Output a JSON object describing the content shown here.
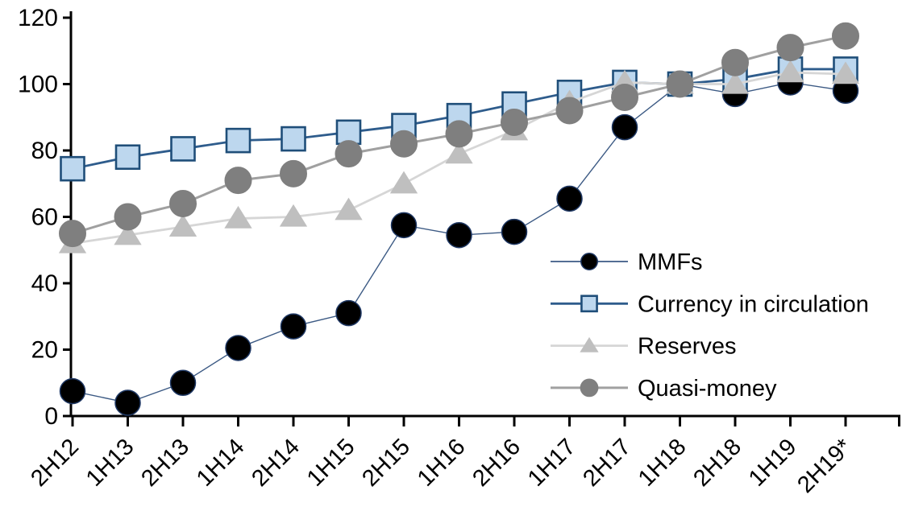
{
  "chart_data": {
    "type": "line",
    "title": "",
    "xlabel": "",
    "ylabel": "",
    "categories": [
      "2H12",
      "1H13",
      "2H13",
      "1H14",
      "2H14",
      "1H15",
      "2H15",
      "1H16",
      "2H16",
      "1H17",
      "2H17",
      "1H18",
      "2H18",
      "1H19",
      "2H19*"
    ],
    "series": [
      {
        "name": "MMFs",
        "marker": "circle",
        "values": [
          7.5,
          4,
          10,
          20.5,
          27,
          31,
          57.5,
          54.5,
          55.5,
          65.5,
          87,
          100,
          97,
          100.5,
          98
        ],
        "line_color": "#3C5A84",
        "line_width": 1.4,
        "marker_fill": "#000000",
        "marker_stroke": "#1F3864",
        "marker_stroke_width": 1.5,
        "marker_size": 31
      },
      {
        "name": "Currency in circulation",
        "marker": "square",
        "values": [
          74.5,
          78,
          80.5,
          83,
          83.5,
          85.5,
          87.5,
          90.5,
          94,
          97.5,
          100.5,
          100,
          101.5,
          104.5,
          104.5
        ],
        "line_color": "#2E5C8C",
        "line_width": 2.8,
        "marker_fill": "#BDD7EE",
        "marker_stroke": "#1F4E79",
        "marker_stroke_width": 2.6,
        "marker_size": 29
      },
      {
        "name": "Reserves",
        "marker": "triangle",
        "values": [
          52,
          54.5,
          57,
          59.5,
          60,
          62,
          70,
          79,
          86,
          94.5,
          100.5,
          100,
          100,
          103.5,
          103
        ],
        "line_color": "#D6D6D6",
        "line_width": 2.8,
        "marker_fill": "#BFBFBF",
        "marker_stroke": "#BFBFBF",
        "marker_stroke_width": 1,
        "marker_size": 31
      },
      {
        "name": "Quasi-money",
        "marker": "circle",
        "values": [
          55,
          60,
          64,
          71,
          73,
          79,
          82,
          85,
          88.5,
          92,
          96,
          100,
          106.5,
          111,
          114.5
        ],
        "line_color": "#A0A0A0",
        "line_width": 3,
        "marker_fill": "#7F7F7F",
        "marker_stroke": "#7F7F7F",
        "marker_stroke_width": 1,
        "marker_size": 33
      }
    ],
    "ylim": [
      0,
      120
    ],
    "y_ticks": [
      0,
      20,
      40,
      60,
      80,
      100,
      120
    ],
    "grid": false,
    "legend_position": "inside-right",
    "axis_color": "#000000",
    "text_color": "#000000"
  }
}
